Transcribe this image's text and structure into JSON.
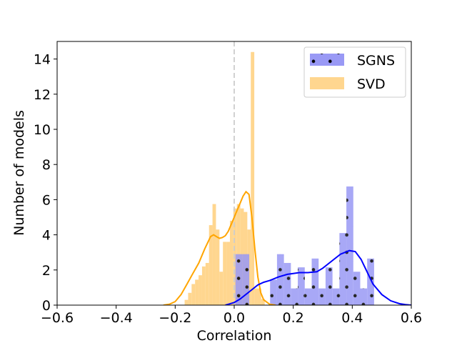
{
  "chart_data": {
    "type": "histogram",
    "xlabel": "Correlation",
    "ylabel": "Number of models",
    "xlim": [
      -0.6,
      0.6
    ],
    "ylim": [
      0,
      15
    ],
    "x_ticks": [
      -0.6,
      -0.4,
      -0.2,
      0.0,
      0.2,
      0.4,
      0.6
    ],
    "x_tick_labels": [
      "−0.6",
      "−0.4",
      "−0.2",
      "0.0",
      "0.2",
      "0.4",
      "0.6"
    ],
    "y_ticks": [
      0,
      2,
      4,
      6,
      8,
      10,
      12,
      14
    ],
    "y_tick_labels": [
      "0",
      "2",
      "4",
      "6",
      "8",
      "10",
      "12",
      "14"
    ],
    "reference_line_x": 0.0,
    "legend_position": "top-right",
    "series": [
      {
        "name": "SGNS",
        "color": "#0000ff",
        "bar_color": "#9999f5",
        "hatch": "dots",
        "bin_width": 0.0235,
        "bins": [
          {
            "x": 0.004,
            "h": 2.9
          },
          {
            "x": 0.0275,
            "h": 2.9
          },
          {
            "x": 0.1215,
            "h": 1.45
          },
          {
            "x": 0.145,
            "h": 2.9
          },
          {
            "x": 0.1685,
            "h": 2.4
          },
          {
            "x": 0.192,
            "h": 0.95
          },
          {
            "x": 0.2155,
            "h": 2.15
          },
          {
            "x": 0.239,
            "h": 0.95
          },
          {
            "x": 0.2625,
            "h": 2.65
          },
          {
            "x": 0.286,
            "h": 0.95
          },
          {
            "x": 0.3095,
            "h": 2.15
          },
          {
            "x": 0.333,
            "h": 0.95
          },
          {
            "x": 0.3565,
            "h": 4.1
          },
          {
            "x": 0.38,
            "h": 6.75
          },
          {
            "x": 0.4035,
            "h": 1.9
          },
          {
            "x": 0.427,
            "h": 0.95
          },
          {
            "x": 0.4505,
            "h": 2.65
          }
        ],
        "kde": [
          [
            -0.03,
            0.0
          ],
          [
            -0.02,
            0.05
          ],
          [
            0.0,
            0.15
          ],
          [
            0.02,
            0.35
          ],
          [
            0.05,
            0.75
          ],
          [
            0.08,
            1.15
          ],
          [
            0.1,
            1.3
          ],
          [
            0.12,
            1.4
          ],
          [
            0.15,
            1.6
          ],
          [
            0.18,
            1.75
          ],
          [
            0.2,
            1.8
          ],
          [
            0.22,
            1.85
          ],
          [
            0.25,
            1.85
          ],
          [
            0.28,
            1.9
          ],
          [
            0.3,
            2.1
          ],
          [
            0.33,
            2.5
          ],
          [
            0.36,
            2.9
          ],
          [
            0.39,
            3.1
          ],
          [
            0.41,
            3.05
          ],
          [
            0.43,
            2.6
          ],
          [
            0.45,
            1.9
          ],
          [
            0.47,
            1.2
          ],
          [
            0.5,
            0.6
          ],
          [
            0.53,
            0.25
          ],
          [
            0.56,
            0.08
          ],
          [
            0.58,
            0.03
          ],
          [
            0.6,
            0.0
          ]
        ]
      },
      {
        "name": "SVD",
        "color": "#ffa500",
        "bar_color": "#ffd68f",
        "hatch": "none",
        "bin_width": 0.0118,
        "bins": [
          {
            "x": -0.168,
            "h": 0.3
          },
          {
            "x": -0.1562,
            "h": 0.7
          },
          {
            "x": -0.1444,
            "h": 1.2
          },
          {
            "x": -0.1326,
            "h": 1.45
          },
          {
            "x": -0.1208,
            "h": 1.7
          },
          {
            "x": -0.109,
            "h": 2.2
          },
          {
            "x": -0.0972,
            "h": 2.4
          },
          {
            "x": -0.0854,
            "h": 4.55
          },
          {
            "x": -0.0736,
            "h": 5.75
          },
          {
            "x": -0.0618,
            "h": 4.3
          },
          {
            "x": -0.05,
            "h": 1.9
          },
          {
            "x": -0.0382,
            "h": 3.6
          },
          {
            "x": -0.0264,
            "h": 3.6
          },
          {
            "x": -0.0146,
            "h": 4.8
          },
          {
            "x": -0.0028,
            "h": 5.5
          },
          {
            "x": 0.009,
            "h": 5.75
          },
          {
            "x": 0.0208,
            "h": 5.5
          },
          {
            "x": 0.0326,
            "h": 5.3
          },
          {
            "x": 0.0444,
            "h": 4.3
          },
          {
            "x": 0.0562,
            "h": 14.4
          },
          {
            "x": 0.068,
            "h": 0.95
          },
          {
            "x": 0.0798,
            "h": 0.95
          },
          {
            "x": 0.0916,
            "h": 0.35
          }
        ],
        "kde": [
          [
            -0.24,
            0.0
          ],
          [
            -0.22,
            0.05
          ],
          [
            -0.2,
            0.2
          ],
          [
            -0.18,
            0.6
          ],
          [
            -0.16,
            1.2
          ],
          [
            -0.14,
            1.8
          ],
          [
            -0.12,
            2.4
          ],
          [
            -0.1,
            3.2
          ],
          [
            -0.08,
            3.9
          ],
          [
            -0.07,
            4.0
          ],
          [
            -0.06,
            3.9
          ],
          [
            -0.05,
            3.8
          ],
          [
            -0.04,
            3.85
          ],
          [
            -0.03,
            3.95
          ],
          [
            -0.02,
            4.2
          ],
          [
            -0.01,
            4.6
          ],
          [
            0.0,
            5.0
          ],
          [
            0.01,
            5.4
          ],
          [
            0.02,
            5.8
          ],
          [
            0.03,
            6.2
          ],
          [
            0.04,
            6.45
          ],
          [
            0.05,
            6.3
          ],
          [
            0.06,
            5.0
          ],
          [
            0.07,
            3.2
          ],
          [
            0.08,
            1.6
          ],
          [
            0.09,
            0.7
          ],
          [
            0.1,
            0.3
          ],
          [
            0.12,
            0.05
          ],
          [
            0.14,
            0.0
          ]
        ]
      }
    ]
  }
}
